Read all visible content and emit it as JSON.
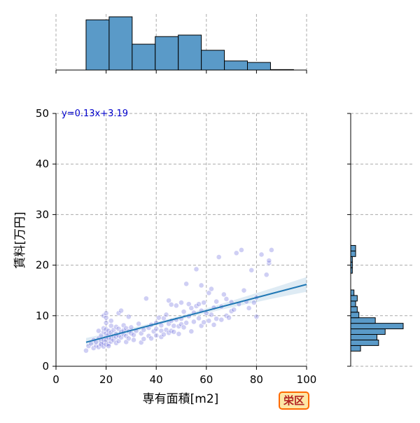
{
  "chart_data": {
    "type": "scatter",
    "xlabel": "専有面積[m2]",
    "ylabel": "賃料[万円]",
    "xlim": [
      0,
      100
    ],
    "ylim": [
      0,
      50
    ],
    "xticks": [
      "0",
      "20",
      "40",
      "60",
      "80",
      "100"
    ],
    "yticks": [
      "0",
      "10",
      "20",
      "30",
      "40",
      "50"
    ],
    "grid": true,
    "regression": {
      "label": "y=0.13x+3.19",
      "slope": 0.13,
      "intercept": 3.19,
      "x_range": [
        12,
        100
      ]
    },
    "points": [
      [
        12,
        3.1
      ],
      [
        13,
        4.0
      ],
      [
        14,
        4.5
      ],
      [
        15,
        3.6
      ],
      [
        15,
        5.2
      ],
      [
        16,
        4.1
      ],
      [
        16,
        4.8
      ],
      [
        17,
        3.8
      ],
      [
        17,
        5.5
      ],
      [
        17,
        7.0
      ],
      [
        18,
        4.2
      ],
      [
        18,
        5.0
      ],
      [
        18,
        6.1
      ],
      [
        18,
        4.4
      ],
      [
        19,
        3.9
      ],
      [
        19,
        4.6
      ],
      [
        19,
        5.3
      ],
      [
        19,
        6.8
      ],
      [
        19,
        7.5
      ],
      [
        19,
        10.0
      ],
      [
        20,
        4.3
      ],
      [
        20,
        5.1
      ],
      [
        20,
        5.8
      ],
      [
        20,
        6.5
      ],
      [
        20,
        7.3
      ],
      [
        20,
        8.6
      ],
      [
        20,
        9.6
      ],
      [
        20,
        10.5
      ],
      [
        21,
        4.4
      ],
      [
        21,
        5.6
      ],
      [
        21,
        6.2
      ],
      [
        21,
        7.0
      ],
      [
        21,
        4.0
      ],
      [
        22,
        4.9
      ],
      [
        22,
        5.5
      ],
      [
        22,
        6.7
      ],
      [
        22,
        8.0
      ],
      [
        22,
        9.0
      ],
      [
        23,
        5.2
      ],
      [
        23,
        6.0
      ],
      [
        23,
        7.2
      ],
      [
        24,
        4.6
      ],
      [
        24,
        5.8
      ],
      [
        24,
        6.4
      ],
      [
        24,
        7.8
      ],
      [
        25,
        5.0
      ],
      [
        25,
        6.1
      ],
      [
        25,
        7.4
      ],
      [
        25,
        10.5
      ],
      [
        26,
        5.7
      ],
      [
        26,
        6.8
      ],
      [
        26,
        11.0
      ],
      [
        27,
        6.3
      ],
      [
        27,
        7.1
      ],
      [
        27,
        8.1
      ],
      [
        28,
        4.8
      ],
      [
        28,
        6.0
      ],
      [
        28,
        7.5
      ],
      [
        29,
        5.5
      ],
      [
        29,
        6.9
      ],
      [
        29,
        9.8
      ],
      [
        30,
        6.5
      ],
      [
        30,
        7.7
      ],
      [
        31,
        5.2
      ],
      [
        31,
        6.2
      ],
      [
        32,
        7.0
      ],
      [
        33,
        8.4
      ],
      [
        34,
        4.7
      ],
      [
        34,
        6.5
      ],
      [
        35,
        5.4
      ],
      [
        35,
        7.2
      ],
      [
        36,
        13.4
      ],
      [
        37,
        6.0
      ],
      [
        37,
        7.6
      ],
      [
        38,
        5.5
      ],
      [
        38,
        8.2
      ],
      [
        39,
        6.9
      ],
      [
        40,
        6.1
      ],
      [
        40,
        7.4
      ],
      [
        40,
        8.6
      ],
      [
        41,
        9.6
      ],
      [
        42,
        5.8
      ],
      [
        42,
        7.0
      ],
      [
        42,
        8.1
      ],
      [
        43,
        6.3
      ],
      [
        43,
        9.5
      ],
      [
        44,
        7.2
      ],
      [
        44,
        10.2
      ],
      [
        45,
        6.6
      ],
      [
        45,
        8.4
      ],
      [
        45,
        13.0
      ],
      [
        46,
        7.0
      ],
      [
        46,
        9.0
      ],
      [
        46,
        12.2
      ],
      [
        47,
        6.8
      ],
      [
        47,
        8.0
      ],
      [
        48,
        9.2
      ],
      [
        48,
        12.0
      ],
      [
        49,
        6.4
      ],
      [
        49,
        7.9
      ],
      [
        50,
        8.3
      ],
      [
        50,
        9.4
      ],
      [
        50,
        12.6
      ],
      [
        51,
        7.7
      ],
      [
        51,
        10.8
      ],
      [
        52,
        8.6
      ],
      [
        52,
        16.3
      ],
      [
        53,
        9.9
      ],
      [
        53,
        12.3
      ],
      [
        54,
        6.9
      ],
      [
        54,
        11.5
      ],
      [
        55,
        8.8
      ],
      [
        55,
        10.6
      ],
      [
        56,
        11.9
      ],
      [
        56,
        19.2
      ],
      [
        57,
        9.5
      ],
      [
        57,
        12.3
      ],
      [
        58,
        8.0
      ],
      [
        58,
        11.0
      ],
      [
        58,
        16.0
      ],
      [
        59,
        8.7
      ],
      [
        59,
        12.6
      ],
      [
        60,
        10.5
      ],
      [
        61,
        9.0
      ],
      [
        61,
        14.5
      ],
      [
        62,
        10.2
      ],
      [
        62,
        15.3
      ],
      [
        63,
        8.2
      ],
      [
        63,
        11.6
      ],
      [
        64,
        9.4
      ],
      [
        64,
        12.8
      ],
      [
        65,
        21.6
      ],
      [
        66,
        9.2
      ],
      [
        66,
        11.8
      ],
      [
        67,
        14.2
      ],
      [
        68,
        10.0
      ],
      [
        68,
        13.3
      ],
      [
        69,
        9.6
      ],
      [
        70,
        10.9
      ],
      [
        70,
        12.7
      ],
      [
        71,
        11.2
      ],
      [
        72,
        22.4
      ],
      [
        73,
        12.3
      ],
      [
        74,
        23.0
      ],
      [
        75,
        15.0
      ],
      [
        76,
        12.8
      ],
      [
        77,
        11.5
      ],
      [
        78,
        19.0
      ],
      [
        79,
        12.6
      ],
      [
        80,
        13.6
      ],
      [
        80,
        9.8
      ],
      [
        82,
        22.1
      ],
      [
        84,
        18.1
      ],
      [
        85,
        20.4
      ],
      [
        85,
        20.9
      ],
      [
        86,
        23.0
      ]
    ],
    "marginal_x": {
      "bin_edges": [
        12,
        21.2,
        30.4,
        39.6,
        48.8,
        58,
        67.2,
        76.4,
        85.6,
        94.8
      ],
      "counts": [
        33,
        35,
        17,
        22,
        23,
        13,
        6,
        5,
        0.3
      ]
    },
    "marginal_y": {
      "bin_edges": [
        3.0,
        4.1,
        5.2,
        6.3,
        7.4,
        8.5,
        9.6,
        10.7,
        11.8,
        12.9,
        14.0,
        15.1,
        16.2,
        17.3,
        18.4,
        19.5,
        20.6,
        21.7,
        22.8,
        23.9
      ],
      "counts": [
        6,
        17,
        16,
        21,
        32,
        15,
        5,
        4,
        3,
        4,
        2,
        0,
        0,
        0,
        1,
        1,
        1,
        3,
        3
      ]
    }
  },
  "badge": {
    "label": "栄区",
    "border_color": "#ff6a00",
    "fill_color": "#fde6a6",
    "text_color": "#b22222"
  },
  "colors": {
    "bar": "#5a9ac8",
    "line": "#1f77b4",
    "point": "#6a6adc",
    "label": "#0000cc"
  }
}
